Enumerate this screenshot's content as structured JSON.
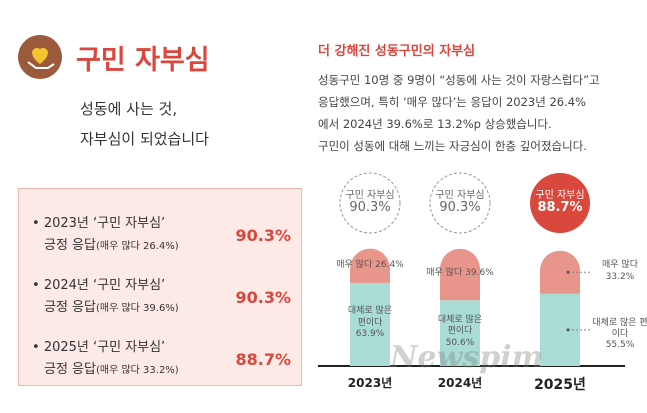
{
  "header": {
    "title": "구민 자부심",
    "subtitle": [
      "성동에 사는 것,",
      "자부심이 되었습니다"
    ]
  },
  "stats": [
    {
      "label": "2023년 ‘구민 자부심’",
      "desc": "긍정 응답",
      "note": "(매우 많다 26.4%)",
      "value": 90.3,
      "unit": "%"
    },
    {
      "label": "2024년 ‘구민 자부심’",
      "desc": "긍정 응답",
      "note": "(매우 많다 39.6%)",
      "value": 90.3,
      "unit": "%"
    },
    {
      "label": "2025년 ‘구민 자부심’",
      "desc": "긍정 응답",
      "note": "(매우 많다 33.2%)",
      "value": 88.7,
      "unit": "%"
    }
  ],
  "article": {
    "heading": "더 강해진 성동구민의 자부심",
    "lines": [
      "성동구민 10명 중 9명이 “성동에 사는 것이 자랑스럽다”고",
      "응답했으며, 특히 ‘매우 많다’는 응답이 2023년 26.4%",
      "에서 2024년 39.6%로 13.2%p 상승했습니다.",
      "구민이 성동에 대해 느끼는 자긍심이 한층 깊어졌습니다."
    ]
  },
  "chart_data": {
    "type": "stacked_bar",
    "categories": [
      "2023년",
      "2024년",
      "2025년"
    ],
    "series": [
      {
        "name": "대체로 많은 편이다",
        "color": "#a9dcd5",
        "values": [
          63.9,
          50.6,
          55.5
        ],
        "value_labels": [
          "63.9%",
          "50.6%",
          "55.5%"
        ]
      },
      {
        "name": "매우 많다",
        "color": "#e8958b",
        "values": [
          26.4,
          39.6,
          33.2
        ],
        "value_labels": [
          "26.4%",
          "39.6%",
          "33.2%"
        ]
      }
    ],
    "totals": {
      "name": "구민 자부심",
      "values": [
        90.3,
        90.3,
        88.7
      ],
      "value_labels": [
        "90.3%",
        "90.3%",
        "88.7%"
      ]
    }
  },
  "watermark": "Newspim"
}
